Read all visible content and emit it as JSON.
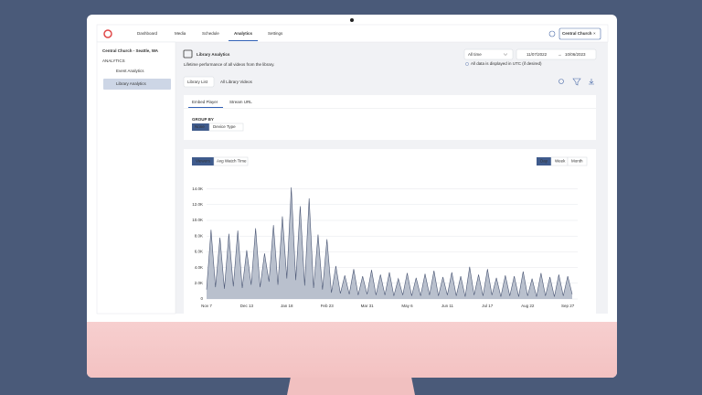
{
  "nav": {
    "items": [
      "Dashboard",
      "Media",
      "Schedule",
      "Analytics",
      "Settings"
    ],
    "account": "Central Church"
  },
  "sidebar": {
    "org": "Central Church - Seattle, WA",
    "section": "ANALYTICS",
    "links": [
      "Event Analytics",
      "Library Analytics"
    ]
  },
  "page": {
    "title": "Library Analytics",
    "subtitle": "Lifetime performance of all videos from the library.",
    "filters": [
      "Library List",
      "All Library Videos"
    ],
    "range": "All time",
    "date_from": "11/07/2022",
    "date_to": "10/06/2023",
    "note": "All data is displayed in UTC (if desired)",
    "tabs": [
      "Embed Player",
      "Stream URL"
    ],
    "group_by": "GROUP BY",
    "group_options": [
      "None",
      "Device Type"
    ],
    "metrics": [
      "Viewers",
      "Avg Watch Time"
    ],
    "intervals": [
      "Day",
      "Week",
      "Month"
    ]
  },
  "chart_data": {
    "type": "area",
    "color": "#4b5775",
    "fill": "#b9c0cd",
    "grid": true,
    "categories": [
      "Nov 7",
      null,
      null,
      null,
      null,
      null,
      null,
      null,
      null,
      "Dec 13",
      null,
      null,
      null,
      null,
      null,
      null,
      null,
      null,
      "Jan 18",
      null,
      null,
      null,
      null,
      null,
      null,
      null,
      null,
      "Feb 23",
      null,
      null,
      null,
      null,
      null,
      null,
      null,
      null,
      "Mar 31",
      null,
      null,
      null,
      null,
      null,
      null,
      null,
      null,
      "May 6",
      null,
      null,
      null,
      null,
      null,
      null,
      null,
      null,
      "Jun 11",
      null,
      null,
      null,
      null,
      null,
      null,
      null,
      null,
      "Jul 17",
      null,
      null,
      null,
      null,
      null,
      null,
      null,
      null,
      "Aug 22",
      null,
      null,
      null,
      null,
      null,
      null,
      null,
      null,
      "Sep 27",
      null
    ],
    "values": [
      1200,
      8800,
      1500,
      7800,
      1300,
      8300,
      1600,
      8700,
      1400,
      6200,
      1800,
      9000,
      1500,
      5800,
      2200,
      9400,
      1800,
      10500,
      2600,
      14200,
      2400,
      11800,
      1700,
      12800,
      1400,
      8200,
      1200,
      7600,
      800,
      4200,
      700,
      3000,
      600,
      3800,
      500,
      2900,
      600,
      3700,
      500,
      3100,
      500,
      3400,
      400,
      2600,
      500,
      3300,
      400,
      2700,
      400,
      3200,
      500,
      3600,
      400,
      2800,
      500,
      3400,
      400,
      2900,
      300,
      4100,
      500,
      3100,
      400,
      3800,
      500,
      2700,
      300,
      3000,
      400,
      2900,
      300,
      3500,
      400,
      2600,
      300,
      3300,
      400,
      2800,
      300,
      3100,
      400,
      2900,
      600
    ],
    "ylim": [
      0,
      15000
    ],
    "yticks": [
      0,
      {
        "value": 2000,
        "label": "2.0K"
      },
      {
        "value": 4000,
        "label": "4.0K"
      },
      {
        "value": 6000,
        "label": "6.0K"
      },
      {
        "value": 8000,
        "label": "8.0K"
      },
      {
        "value": 10000,
        "label": "10.0K"
      },
      {
        "value": 12000,
        "label": "12.0K"
      },
      {
        "value": 14000,
        "label": "14.0K"
      }
    ]
  }
}
